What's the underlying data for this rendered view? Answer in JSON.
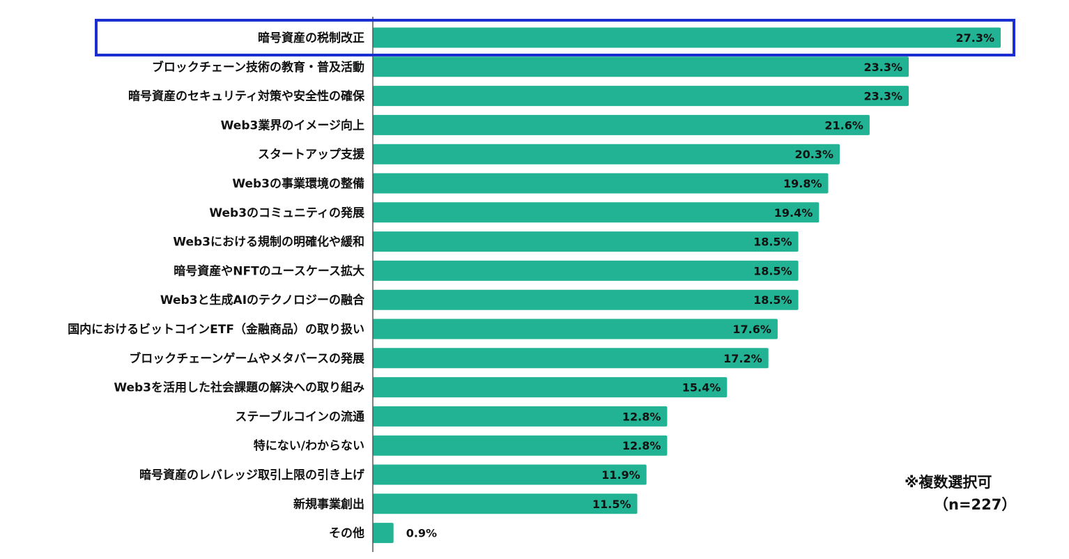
{
  "chart_data": {
    "type": "bar",
    "orientation": "horizontal",
    "categories": [
      "暗号資産の税制改正",
      "ブロックチェーン技術の教育・普及活動",
      "暗号資産のセキュリティ対策や安全性の確保",
      "Web3業界のイメージ向上",
      "スタートアップ支援",
      "Web3の事業環境の整備",
      "Web3のコミュニティの発展",
      "Web3における規制の明確化や緩和",
      "暗号資産やNFTのユースケース拡大",
      "Web3と生成AIのテクノロジーの融合",
      "国内におけるビットコインETF（金融商品）の取り扱い",
      "ブロックチェーンゲームやメタバースの発展",
      "Web3を活用した社会課題の解決への取り組み",
      "ステーブルコインの流通",
      "特にない/わからない",
      "暗号資産のレバレッジ取引上限の引き上げ",
      "新規事業創出",
      "その他"
    ],
    "values": [
      27.3,
      23.3,
      23.3,
      21.6,
      20.3,
      19.8,
      19.4,
      18.5,
      18.5,
      18.5,
      17.6,
      17.2,
      15.4,
      12.8,
      12.8,
      11.9,
      11.5,
      0.9
    ],
    "value_labels": [
      "27.3%",
      "23.3%",
      "23.3%",
      "21.6%",
      "20.3%",
      "19.8%",
      "19.4%",
      "18.5%",
      "18.5%",
      "18.5%",
      "17.6%",
      "17.2%",
      "15.4%",
      "12.8%",
      "12.8%",
      "11.9%",
      "11.5%",
      "0.9%"
    ],
    "highlighted_index": 0,
    "xlim": [
      0,
      30
    ],
    "grid": false,
    "title": "",
    "xlabel": "",
    "ylabel": "",
    "colors": {
      "bar": "#21b394",
      "highlight_border": "#1b2fd0",
      "axis": "#555555",
      "text": "#111111"
    }
  },
  "notes": {
    "multiple_choice": "※複数選択可",
    "sample_size": "（n=227）"
  }
}
